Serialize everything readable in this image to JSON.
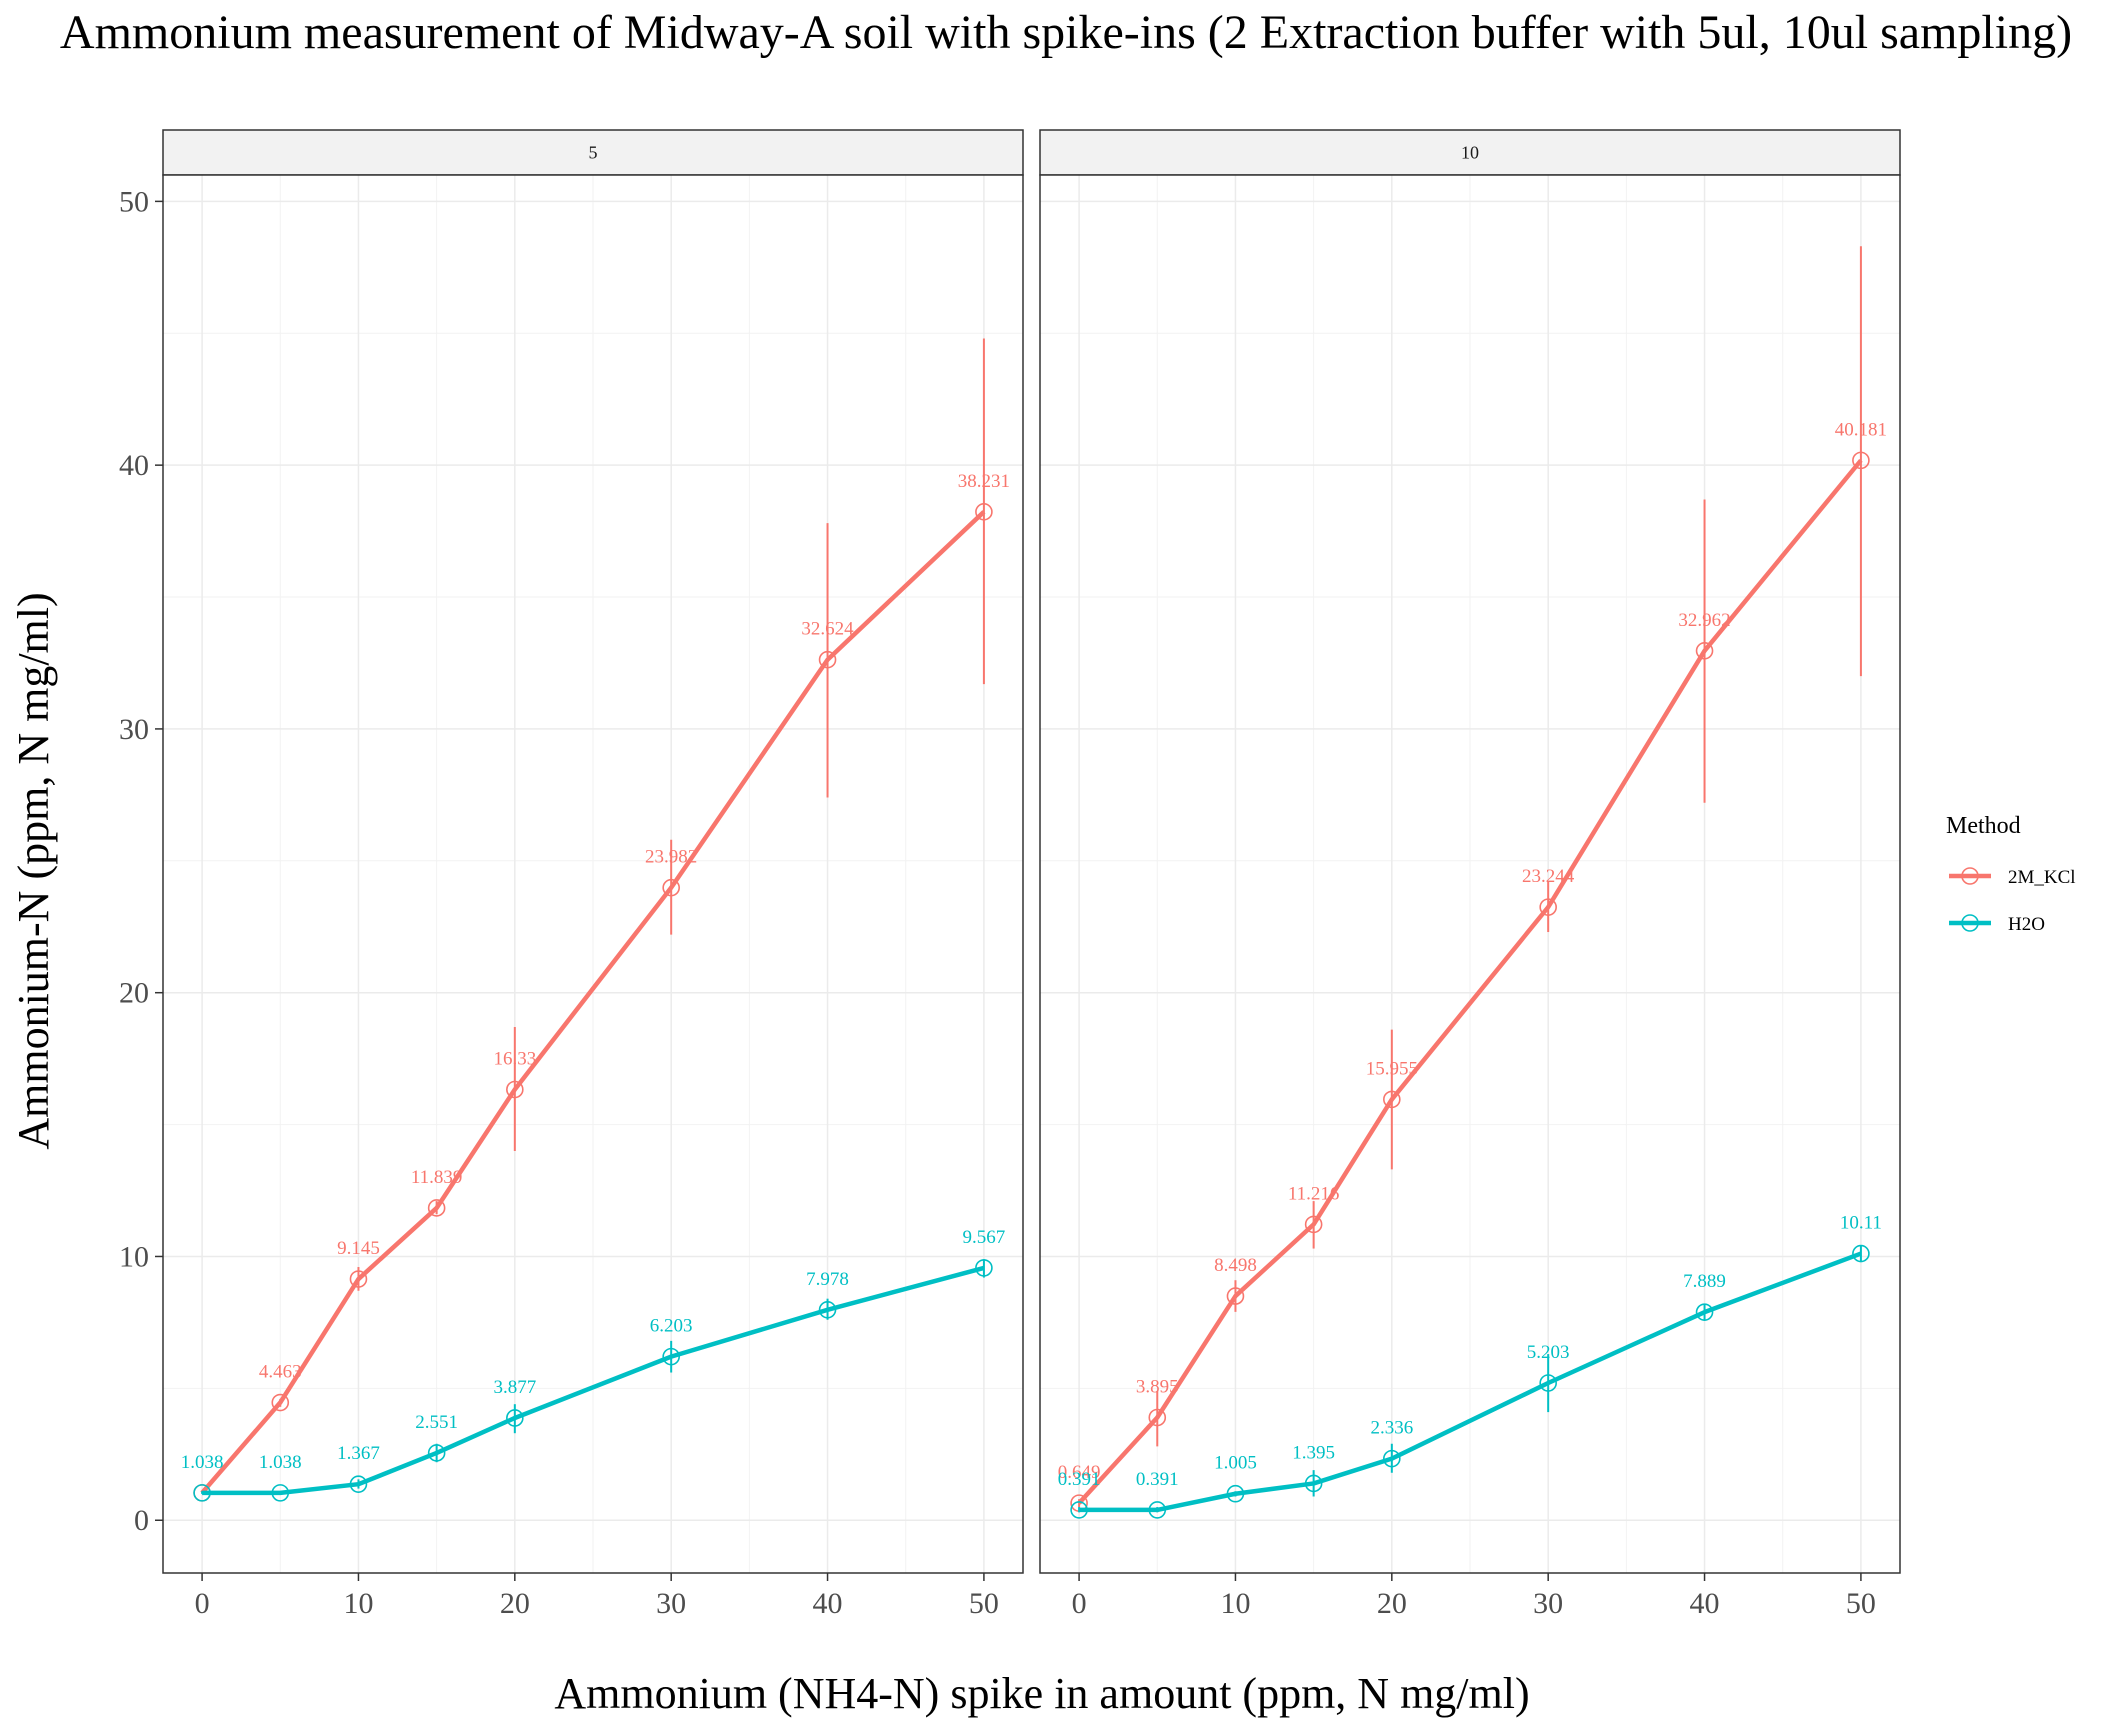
{
  "chart_data": {
    "type": "line",
    "title": "Ammonium measurement of Midway-A soil with spike-ins (2 Extraction buffer with 5ul, 10ul sampling)",
    "xlabel": "Ammonium (NH4-N) spike in amount (ppm, N mg/ml)",
    "ylabel": "Ammonium-N (ppm, N mg/ml)",
    "xlim": [
      -2.5,
      52.5
    ],
    "ylim": [
      -2,
      51
    ],
    "x_ticks": [
      0,
      10,
      20,
      30,
      40,
      50
    ],
    "y_ticks": [
      0,
      10,
      20,
      30,
      40,
      50
    ],
    "grid": true,
    "legend": {
      "title": "Method",
      "position": "right"
    },
    "colors": {
      "2M_KCl": "#F8766D",
      "H2O": "#00BFC4"
    },
    "x": [
      0,
      5,
      10,
      15,
      20,
      30,
      40,
      50
    ],
    "panels": [
      {
        "facet": "5",
        "series": [
          {
            "name": "2M_KCl",
            "values": [
              1.038,
              4.463,
              9.145,
              11.839,
              16.33,
              23.982,
              32.624,
              38.231
            ],
            "labels": [
              "",
              "4.463",
              "9.145",
              "11.839",
              "16.33",
              "23.982",
              "32.624",
              "38.231"
            ],
            "err_low": [
              1.038,
              4.3,
              8.7,
              11.6,
              14.0,
              22.2,
              27.4,
              31.7
            ],
            "err_high": [
              1.038,
              4.6,
              9.6,
              12.1,
              18.7,
              25.8,
              37.8,
              44.8
            ]
          },
          {
            "name": "H2O",
            "values": [
              1.038,
              1.038,
              1.367,
              2.551,
              3.877,
              6.203,
              7.978,
              9.567
            ],
            "labels": [
              "1.038",
              "1.038",
              "1.367",
              "2.551",
              "3.877",
              "6.203",
              "7.978",
              "9.567"
            ],
            "err_low": [
              1.0,
              1.0,
              1.2,
              2.2,
              3.3,
              5.6,
              7.6,
              9.2
            ],
            "err_high": [
              1.1,
              1.1,
              1.55,
              2.9,
              4.4,
              6.8,
              8.4,
              9.9
            ]
          }
        ]
      },
      {
        "facet": "10",
        "series": [
          {
            "name": "2M_KCl",
            "values": [
              0.649,
              3.895,
              8.498,
              11.216,
              15.955,
              23.244,
              32.962,
              40.181
            ],
            "labels": [
              "0.649",
              "3.895",
              "8.498",
              "11.216",
              "15.955",
              "23.244",
              "32.962",
              "40.181"
            ],
            "err_low": [
              0.5,
              2.8,
              7.9,
              10.3,
              13.3,
              22.3,
              27.2,
              32.0
            ],
            "err_high": [
              0.8,
              4.9,
              9.1,
              12.1,
              18.6,
              24.2,
              38.7,
              48.3
            ]
          },
          {
            "name": "H2O",
            "values": [
              0.391,
              0.391,
              1.005,
              1.395,
              2.336,
              5.203,
              7.889,
              10.11
            ],
            "labels": [
              "0.391",
              "0.391",
              "1.005",
              "1.395",
              "2.336",
              "5.203",
              "7.889",
              "10.11"
            ],
            "err_low": [
              0.3,
              0.3,
              0.9,
              0.9,
              1.8,
              4.1,
              7.6,
              9.8
            ],
            "err_high": [
              0.5,
              0.5,
              1.1,
              1.9,
              2.9,
              6.3,
              8.2,
              10.4
            ]
          }
        ]
      }
    ]
  }
}
